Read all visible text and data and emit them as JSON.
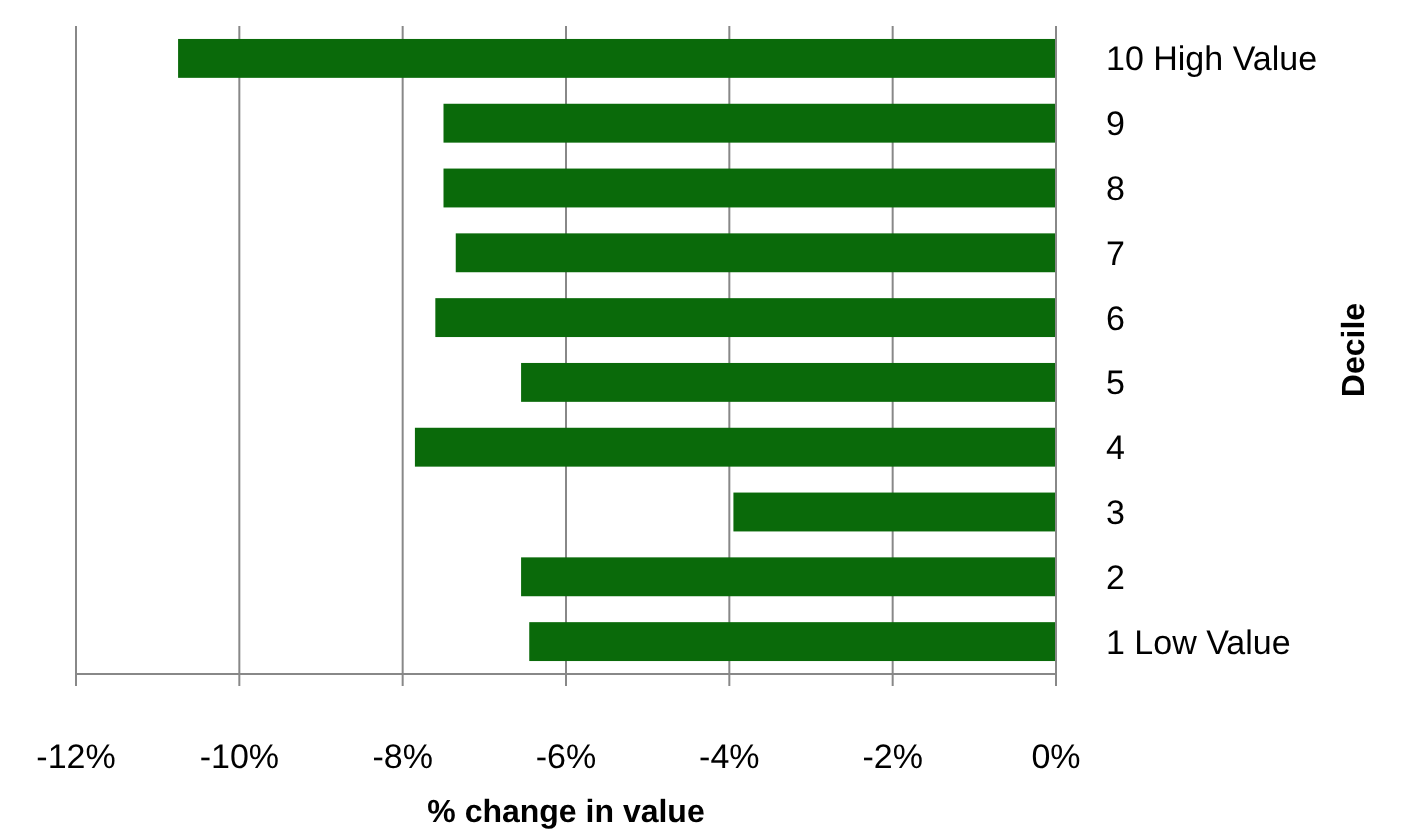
{
  "chart_data": {
    "type": "bar",
    "orientation": "horizontal",
    "xlabel": "% change in value",
    "ylabel": "Decile",
    "categories": [
      "10 High Value",
      "9",
      "8",
      "7",
      "6",
      "5",
      "4",
      "3",
      "2",
      "1 Low Value"
    ],
    "values": [
      -10.75,
      -7.5,
      -7.5,
      -7.35,
      -7.6,
      -6.55,
      -7.85,
      -3.95,
      -6.55,
      -6.45
    ],
    "color": "#0a6a0a",
    "xlim": [
      -12,
      0
    ],
    "xticks": [
      {
        "value": -12,
        "label": "-12%"
      },
      {
        "value": -10,
        "label": "-10%"
      },
      {
        "value": -8,
        "label": "-8%"
      },
      {
        "value": -6,
        "label": "-6%"
      },
      {
        "value": -4,
        "label": "-4%"
      },
      {
        "value": -2,
        "label": "-2%"
      },
      {
        "value": 0,
        "label": "0%"
      }
    ],
    "grid": "x"
  }
}
